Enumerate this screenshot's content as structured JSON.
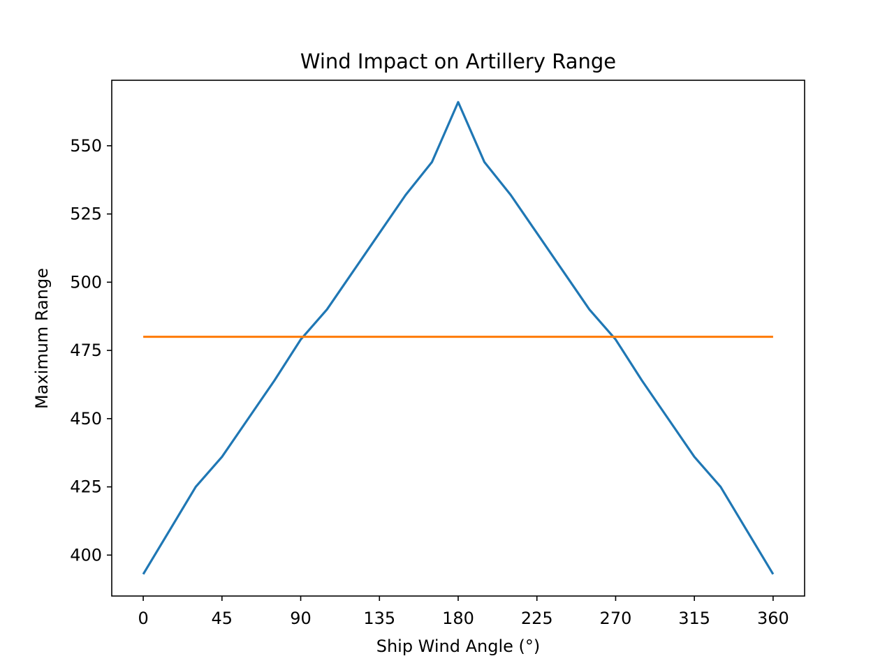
{
  "chart_data": {
    "type": "line",
    "title": "Wind Impact on Artillery Range",
    "xlabel": "Ship Wind Angle (°)",
    "ylabel": "Maximum Range",
    "xlim": [
      -18,
      378
    ],
    "ylim": [
      385,
      574
    ],
    "xticks": [
      0,
      45,
      90,
      135,
      180,
      225,
      270,
      315,
      360
    ],
    "yticks": [
      400,
      425,
      450,
      475,
      500,
      525,
      550
    ],
    "grid": false,
    "series": [
      {
        "color": "#1f77b4",
        "x": [
          0,
          15,
          30,
          45,
          60,
          75,
          90,
          105,
          120,
          135,
          150,
          165,
          180,
          195,
          210,
          225,
          240,
          255,
          270,
          285,
          300,
          315,
          330,
          345,
          360
        ],
        "y": [
          393,
          409,
          425,
          436,
          450,
          464,
          479,
          490,
          504,
          518,
          532,
          544,
          566,
          544,
          532,
          518,
          504,
          490,
          479,
          464,
          450,
          436,
          425,
          409,
          393
        ]
      },
      {
        "color": "#ff7f0e",
        "x": [
          0,
          360
        ],
        "y": [
          480,
          480
        ]
      }
    ]
  }
}
